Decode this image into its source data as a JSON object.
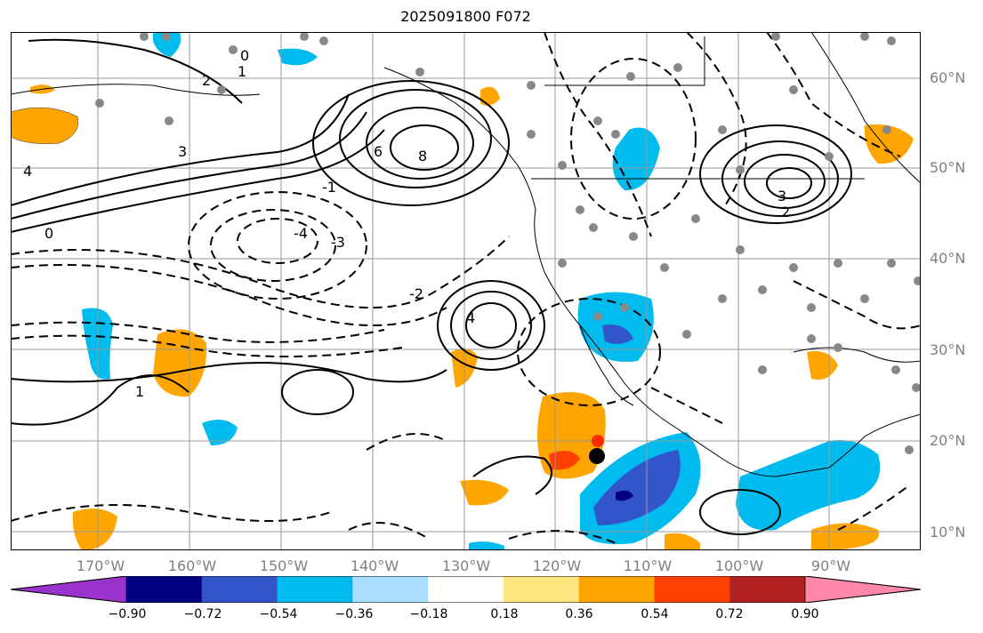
{
  "title": "2025091800 F072",
  "lat_labels": [
    "60°N",
    "50°N",
    "40°N",
    "30°N",
    "20°N",
    "10°N"
  ],
  "lon_labels": [
    "170°W",
    "160°W",
    "150°W",
    "140°W",
    "130°W",
    "120°W",
    "110°W",
    "100°W",
    "90°W"
  ],
  "colorbar": {
    "ticks": [
      "−0.90",
      "−0.72",
      "−0.54",
      "−0.36",
      "−0.18",
      "0.18",
      "0.36",
      "0.54",
      "0.72",
      "0.90"
    ],
    "colors": [
      "#9933cc",
      "#000080",
      "#3355cc",
      "#00bbee",
      "#aaddff",
      "#ffffff",
      "#ffe680",
      "#ffa500",
      "#ff4000",
      "#b22222",
      "#ff88aa"
    ]
  },
  "contour_labels": [
    {
      "text": "0"
    },
    {
      "text": "1"
    },
    {
      "text": "2"
    },
    {
      "text": "3"
    },
    {
      "text": "4"
    },
    {
      "text": "6"
    },
    {
      "text": "8"
    },
    {
      "text": "-2"
    },
    {
      "text": "-3"
    },
    {
      "text": "-4"
    },
    {
      "text": "-1"
    },
    {
      "text": "0"
    },
    {
      "text": "1"
    },
    {
      "text": "3"
    },
    {
      "text": "2"
    },
    {
      "text": "4"
    }
  ],
  "colors": {
    "land_outline": "#000000",
    "grid": "#999999",
    "station": "#888888",
    "marker": "#000000"
  }
}
